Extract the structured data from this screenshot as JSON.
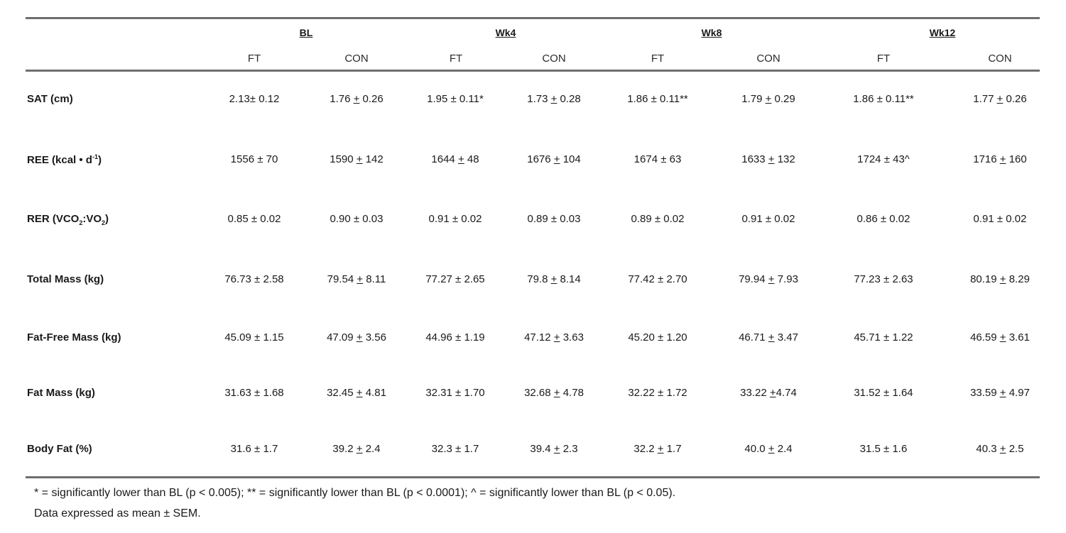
{
  "groups": [
    "BL",
    "Wk4",
    "Wk8",
    "Wk12"
  ],
  "subheaders": [
    "FT",
    "CON",
    "FT",
    "CON",
    "FT",
    "CON",
    "FT",
    "CON"
  ],
  "rows": [
    {
      "label": "SAT (cm)",
      "cells": [
        [
          "2.13",
          "±",
          " 0.12"
        ],
        [
          "1.76 ",
          "+",
          " 0.26"
        ],
        [
          "1.95 ",
          "±",
          " 0.11*"
        ],
        [
          "1.73 ",
          "+",
          " 0.28"
        ],
        [
          "1.86 ",
          "±",
          " 0.11**"
        ],
        [
          "1.79 ",
          "+",
          " 0.29"
        ],
        [
          "1.86 ",
          "±",
          " 0.11**"
        ],
        [
          "1.77 ",
          "+",
          " 0.26"
        ]
      ]
    },
    {
      "label": "REE (kcal • d-1)",
      "cells": [
        [
          "1556 ",
          "±",
          " 70"
        ],
        [
          "1590 ",
          "+",
          " 142"
        ],
        [
          "1644 ",
          "+",
          " 48"
        ],
        [
          "1676 ",
          "+",
          " 104"
        ],
        [
          "1674 ",
          "±",
          " 63"
        ],
        [
          "1633 ",
          "+",
          " 132"
        ],
        [
          "1724 ",
          "±",
          " 43^"
        ],
        [
          "1716 ",
          "+",
          " 160"
        ]
      ]
    },
    {
      "label": "RER (VCO2:VO2)",
      "cells": [
        [
          "0.85 ",
          "±",
          " 0.02"
        ],
        [
          "0.90  ",
          "±",
          " 0.03"
        ],
        [
          "0.91 ",
          "±",
          " 0.02"
        ],
        [
          "0.89 ",
          "±",
          " 0.03"
        ],
        [
          "0.89 ",
          "±",
          " 0.02"
        ],
        [
          "0.91 ",
          "±",
          " 0.02"
        ],
        [
          "0.86 ",
          "±",
          " 0.02"
        ],
        [
          "0.91 ",
          "±",
          " 0.02"
        ]
      ]
    },
    {
      "label": "Total Mass (kg)",
      "cells": [
        [
          "76.73 ",
          "±",
          " 2.58"
        ],
        [
          "79.54 ",
          "+",
          " 8.11"
        ],
        [
          "77.27 ",
          "±",
          " 2.65"
        ],
        [
          "79.8 ",
          "+",
          " 8.14"
        ],
        [
          "77.42 ",
          "±",
          " 2.70"
        ],
        [
          "79.94 ",
          "+",
          " 7.93"
        ],
        [
          "77.23 ",
          "±",
          " 2.63"
        ],
        [
          "80.19 ",
          "+",
          " 8.29"
        ]
      ]
    },
    {
      "label": "Fat-Free Mass (kg)",
      "cells": [
        [
          "45.09 ",
          "±",
          " 1.15"
        ],
        [
          "47.09 ",
          "+",
          " 3.56"
        ],
        [
          "44.96 ",
          "±",
          " 1.19"
        ],
        [
          "47.12 ",
          "+",
          " 3.63"
        ],
        [
          "45.20 ",
          "±",
          " 1.20"
        ],
        [
          "46.71 ",
          "+",
          " 3.47"
        ],
        [
          "45.71 ",
          "±",
          " 1.22"
        ],
        [
          "46.59 ",
          "+",
          " 3.61"
        ]
      ]
    },
    {
      "label": "Fat Mass (kg)",
      "cells": [
        [
          "31.63 ",
          "±",
          " 1.68"
        ],
        [
          "32.45 ",
          "+",
          " 4.81"
        ],
        [
          "32.31 ",
          "±",
          " 1.70"
        ],
        [
          "32.68 ",
          "+",
          " 4.78"
        ],
        [
          "32.22 ",
          "±",
          " 1.72"
        ],
        [
          "33.22 ",
          "+",
          "4.74"
        ],
        [
          "31.52 ",
          "±",
          " 1.64"
        ],
        [
          "33.59 ",
          "+",
          " 4.97"
        ]
      ]
    },
    {
      "label": "Body Fat (%)",
      "cells": [
        [
          "31.6 ",
          "±",
          " 1.7"
        ],
        [
          "39.2 ",
          "+",
          " 2.4"
        ],
        [
          "32.3 ",
          "±",
          " 1.7"
        ],
        [
          "39.4 ",
          "+",
          " 2.3"
        ],
        [
          "32.2 ",
          "+",
          " 1.7"
        ],
        [
          "40.0 ",
          "+",
          " 2.4"
        ],
        [
          "31.5 ",
          "±",
          " 1.6"
        ],
        [
          "40.3 ",
          "+",
          " 2.5"
        ]
      ]
    }
  ],
  "footnotes": {
    "line1": "* = significantly lower than BL (p < 0.005); ** = significantly lower than BL (p < 0.0001); ^ = significantly lower than BL (p < 0.05).",
    "line2": "Data expressed as mean ±  SEM."
  }
}
